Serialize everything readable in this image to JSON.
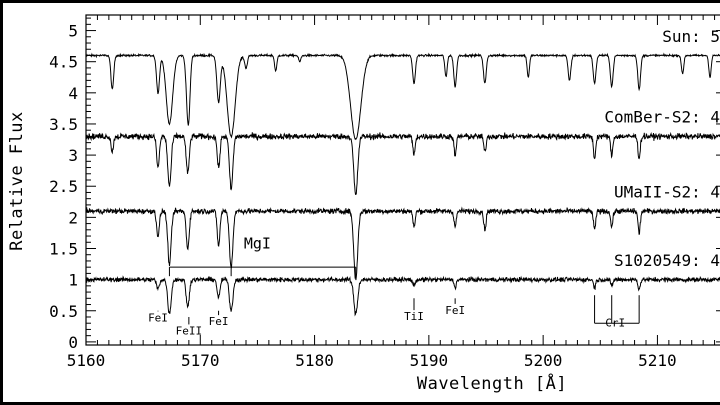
{
  "chart_data": {
    "type": "line",
    "xlabel": "Wavelength [Å]",
    "ylabel": "Relative Flux",
    "xlim": [
      5160,
      5216
    ],
    "ylim": [
      -0.05,
      5.25
    ],
    "x_ticks": [
      5160,
      5170,
      5180,
      5190,
      5200,
      5210
    ],
    "y_ticks": [
      0,
      0.5,
      1,
      1.5,
      2,
      2.5,
      3,
      3.5,
      4,
      4.5,
      5
    ],
    "grid": false,
    "colors": {
      "background": "#ffffff",
      "frame": "#000000",
      "line": "#000000"
    },
    "series": [
      {
        "name": "Sun: 5",
        "continuum": 4.6,
        "noise": 0.015,
        "lines": [
          {
            "x": 5162.3,
            "depth": 0.55,
            "width": 0.12
          },
          {
            "x": 5166.3,
            "depth": 0.6,
            "width": 0.13
          },
          {
            "x": 5167.3,
            "depth": 1.1,
            "width": 0.28
          },
          {
            "x": 5168.9,
            "depth": 0.7,
            "width": 0.15
          },
          {
            "x": 5169.0,
            "depth": 0.5,
            "width": 0.13
          },
          {
            "x": 5171.6,
            "depth": 0.75,
            "width": 0.15
          },
          {
            "x": 5172.7,
            "depth": 1.3,
            "width": 0.35
          },
          {
            "x": 5174.0,
            "depth": 0.2,
            "width": 0.12
          },
          {
            "x": 5176.6,
            "depth": 0.25,
            "width": 0.1
          },
          {
            "x": 5178.7,
            "depth": 0.1,
            "width": 0.1
          },
          {
            "x": 5183.6,
            "depth": 1.35,
            "width": 0.45
          },
          {
            "x": 5188.7,
            "depth": 0.45,
            "width": 0.12
          },
          {
            "x": 5191.5,
            "depth": 0.35,
            "width": 0.1
          },
          {
            "x": 5192.3,
            "depth": 0.5,
            "width": 0.12
          },
          {
            "x": 5194.9,
            "depth": 0.45,
            "width": 0.12
          },
          {
            "x": 5198.7,
            "depth": 0.35,
            "width": 0.1
          },
          {
            "x": 5202.3,
            "depth": 0.4,
            "width": 0.12
          },
          {
            "x": 5204.5,
            "depth": 0.45,
            "width": 0.12
          },
          {
            "x": 5206.0,
            "depth": 0.5,
            "width": 0.12
          },
          {
            "x": 5208.4,
            "depth": 0.55,
            "width": 0.12
          },
          {
            "x": 5212.2,
            "depth": 0.3,
            "width": 0.1
          },
          {
            "x": 5214.6,
            "depth": 0.35,
            "width": 0.1
          }
        ]
      },
      {
        "name": "ComBer-S2: 4",
        "continuum": 3.3,
        "noise": 0.045,
        "lines": [
          {
            "x": 5162.3,
            "depth": 0.25,
            "width": 0.1
          },
          {
            "x": 5166.3,
            "depth": 0.5,
            "width": 0.12
          },
          {
            "x": 5167.3,
            "depth": 0.8,
            "width": 0.15
          },
          {
            "x": 5168.9,
            "depth": 0.6,
            "width": 0.13
          },
          {
            "x": 5171.6,
            "depth": 0.5,
            "width": 0.12
          },
          {
            "x": 5172.7,
            "depth": 0.85,
            "width": 0.15
          },
          {
            "x": 5183.6,
            "depth": 0.95,
            "width": 0.17
          },
          {
            "x": 5188.7,
            "depth": 0.3,
            "width": 0.1
          },
          {
            "x": 5192.3,
            "depth": 0.3,
            "width": 0.1
          },
          {
            "x": 5194.9,
            "depth": 0.25,
            "width": 0.1
          },
          {
            "x": 5204.5,
            "depth": 0.35,
            "width": 0.1
          },
          {
            "x": 5206.0,
            "depth": 0.3,
            "width": 0.1
          },
          {
            "x": 5208.4,
            "depth": 0.35,
            "width": 0.1
          }
        ]
      },
      {
        "name": "UMaII-S2: 4",
        "continuum": 2.1,
        "noise": 0.04,
        "lines": [
          {
            "x": 5166.3,
            "depth": 0.4,
            "width": 0.12
          },
          {
            "x": 5167.3,
            "depth": 0.85,
            "width": 0.15
          },
          {
            "x": 5168.9,
            "depth": 0.6,
            "width": 0.13
          },
          {
            "x": 5171.6,
            "depth": 0.55,
            "width": 0.12
          },
          {
            "x": 5172.7,
            "depth": 0.9,
            "width": 0.15
          },
          {
            "x": 5183.6,
            "depth": 1.1,
            "width": 0.17
          },
          {
            "x": 5188.7,
            "depth": 0.25,
            "width": 0.1
          },
          {
            "x": 5192.3,
            "depth": 0.25,
            "width": 0.1
          },
          {
            "x": 5194.9,
            "depth": 0.3,
            "width": 0.1
          },
          {
            "x": 5204.5,
            "depth": 0.3,
            "width": 0.1
          },
          {
            "x": 5206.0,
            "depth": 0.25,
            "width": 0.1
          },
          {
            "x": 5208.4,
            "depth": 0.35,
            "width": 0.1
          }
        ]
      },
      {
        "name": "S1020549: 4",
        "continuum": 1.0,
        "noise": 0.035,
        "lines": [
          {
            "x": 5166.3,
            "depth": 0.15,
            "width": 0.12
          },
          {
            "x": 5167.3,
            "depth": 0.55,
            "width": 0.15
          },
          {
            "x": 5168.9,
            "depth": 0.45,
            "width": 0.13
          },
          {
            "x": 5171.6,
            "depth": 0.3,
            "width": 0.12
          },
          {
            "x": 5172.7,
            "depth": 0.5,
            "width": 0.15
          },
          {
            "x": 5183.6,
            "depth": 0.55,
            "width": 0.17
          },
          {
            "x": 5188.7,
            "depth": 0.1,
            "width": 0.1
          },
          {
            "x": 5192.3,
            "depth": 0.12,
            "width": 0.1
          },
          {
            "x": 5204.5,
            "depth": 0.12,
            "width": 0.1
          },
          {
            "x": 5206.0,
            "depth": 0.1,
            "width": 0.1
          },
          {
            "x": 5208.4,
            "depth": 0.15,
            "width": 0.1
          }
        ]
      }
    ],
    "annotations": [
      {
        "text": "MgI",
        "kind": "bracket",
        "x": [
          5167.3,
          5172.7,
          5183.6
        ],
        "y": 1.2,
        "label_x": 5175.0,
        "label_y": 1.5
      },
      {
        "text": "FeI",
        "kind": "tick",
        "x": 5166.3,
        "y": 0.5,
        "label_y": 0.33
      },
      {
        "text": "FeII",
        "kind": "tick",
        "x": 5169.0,
        "y": 0.4,
        "label_y": 0.12
      },
      {
        "text": "FeI",
        "kind": "tick",
        "x": 5171.6,
        "y": 0.5,
        "label_y": 0.27
      },
      {
        "text": "TiI",
        "kind": "tick",
        "x": 5188.7,
        "y": 0.7,
        "label_y": 0.35
      },
      {
        "text": "FeI",
        "kind": "tick",
        "x": 5192.3,
        "y": 0.7,
        "label_y": 0.45
      },
      {
        "text": "CrI",
        "kind": "bracket_down",
        "x": [
          5204.5,
          5206.0,
          5208.4
        ],
        "y": 0.75,
        "label_x": 5206.3,
        "label_y": 0.3
      }
    ]
  }
}
